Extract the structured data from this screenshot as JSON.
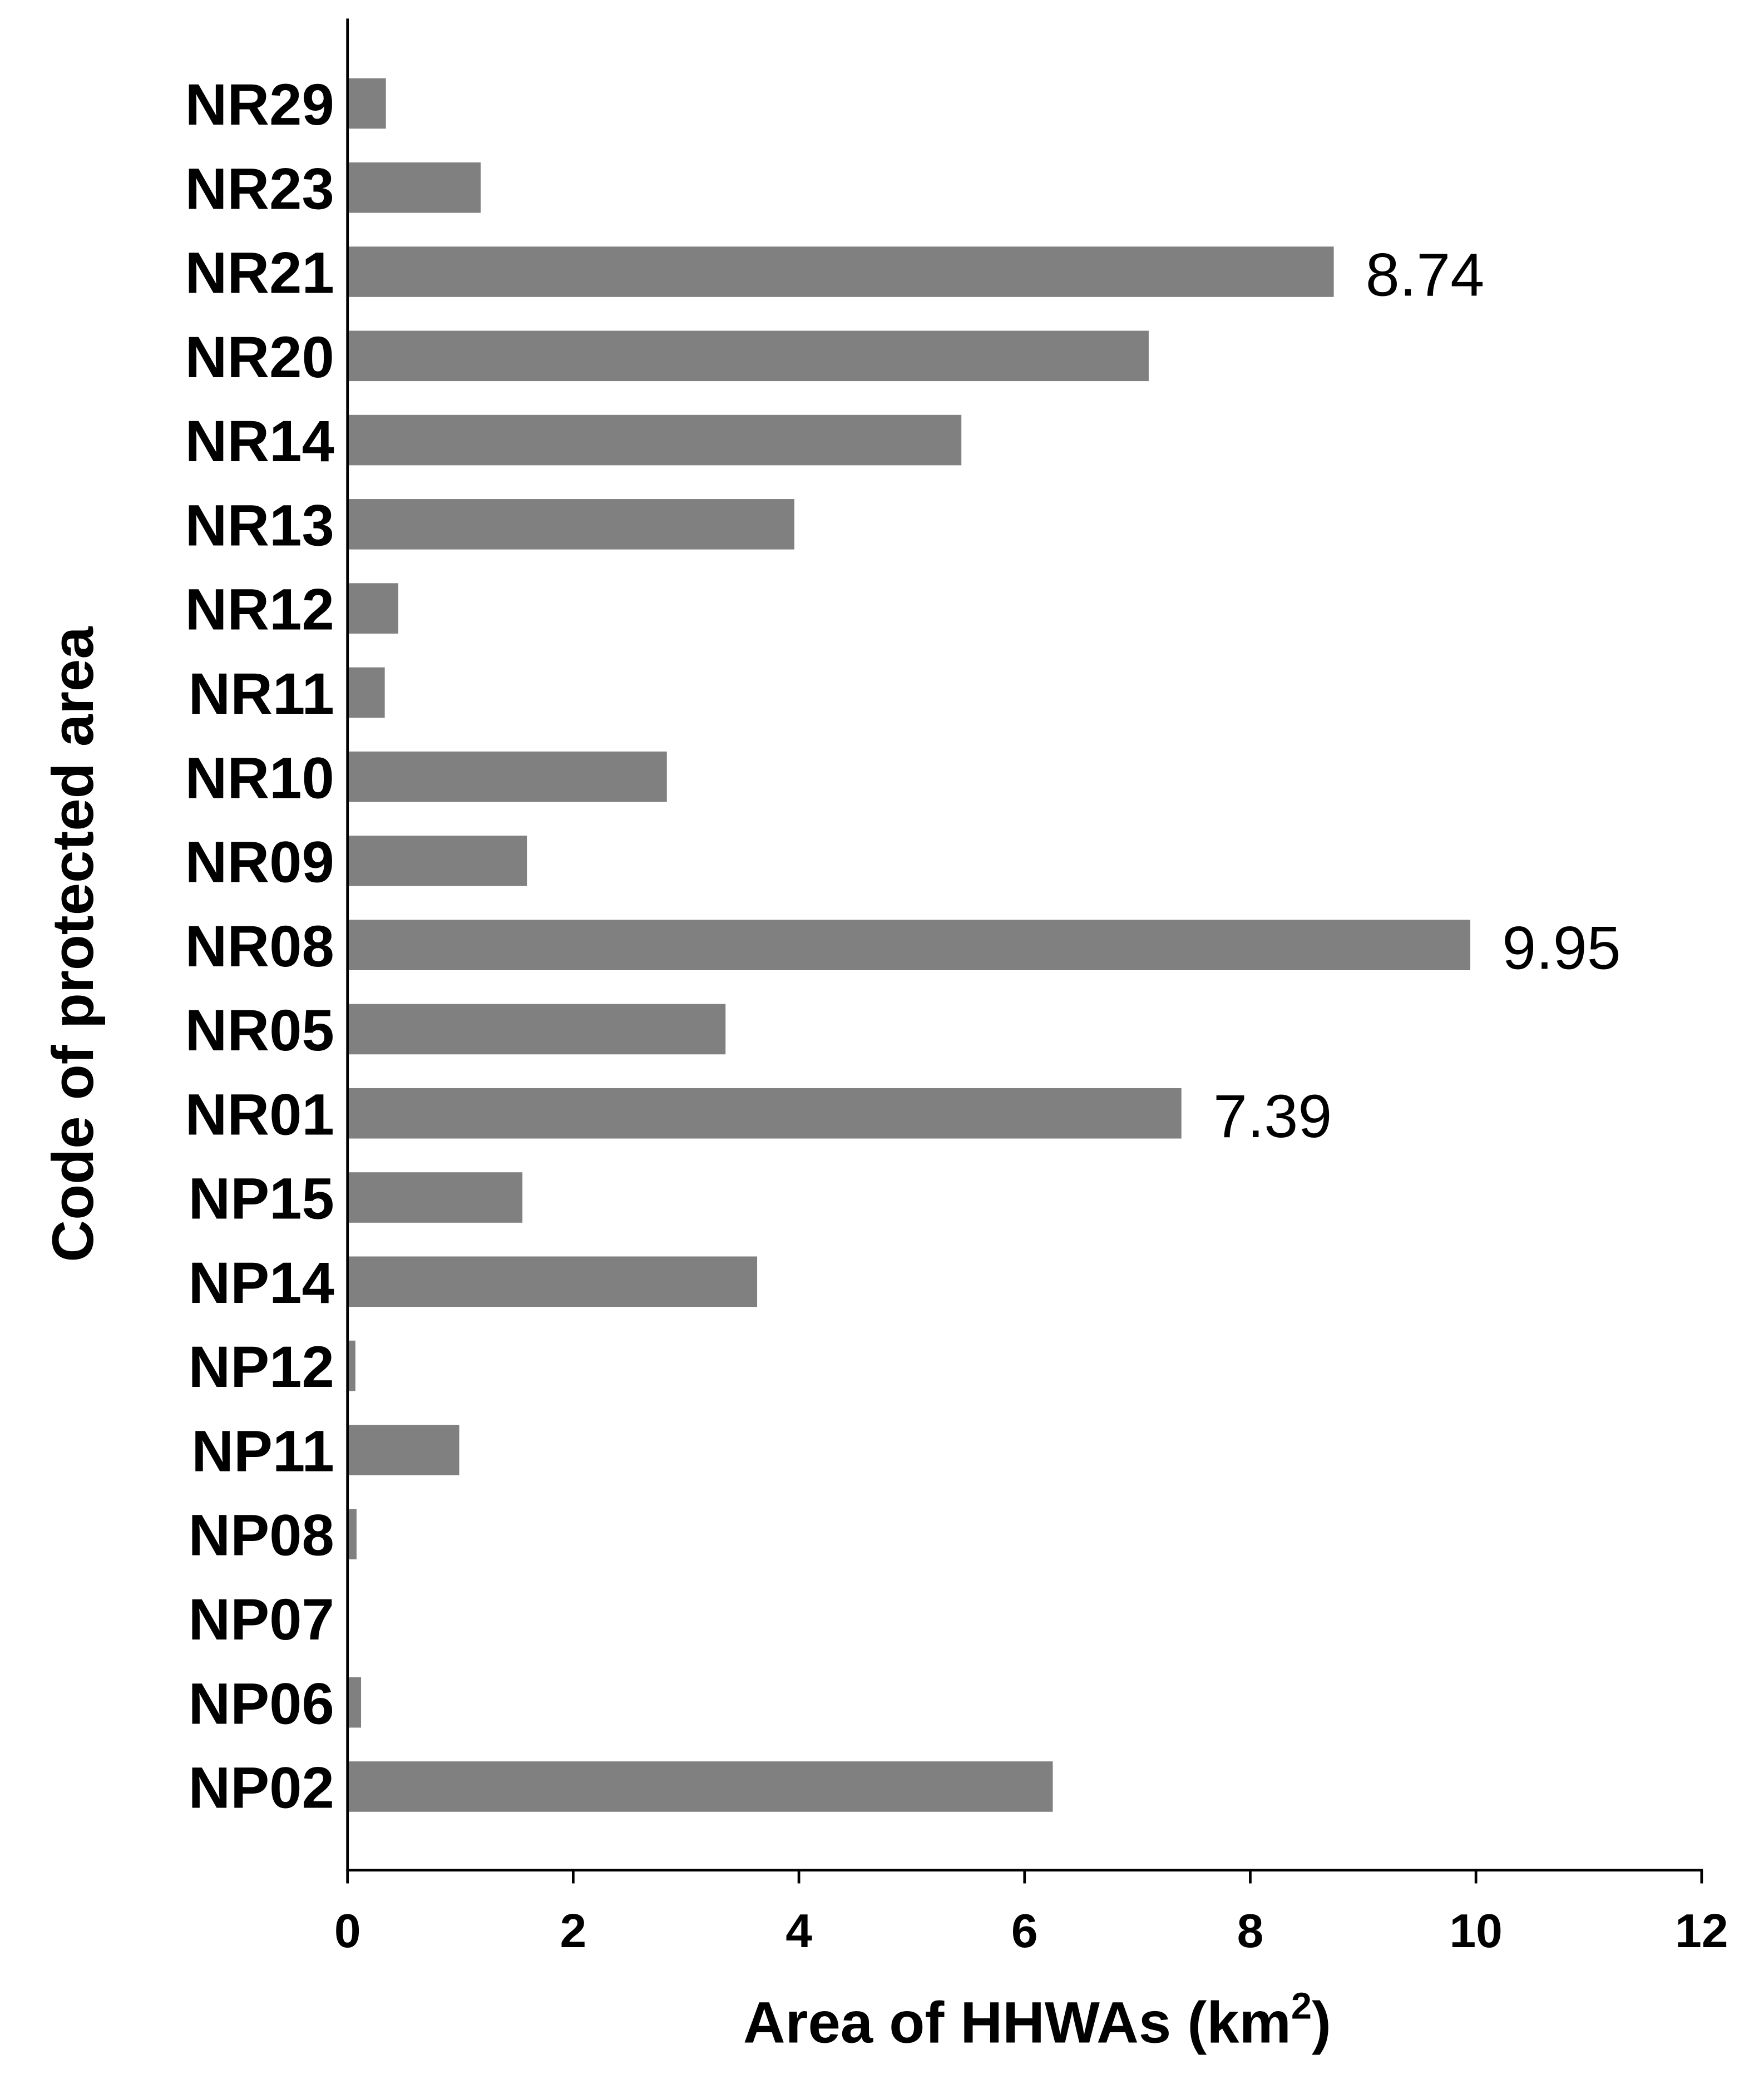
{
  "chart_data": {
    "type": "bar",
    "orientation": "horizontal",
    "categories": [
      "NR29",
      "NR23",
      "NR21",
      "NR20",
      "NR14",
      "NR13",
      "NR12",
      "NR11",
      "NR10",
      "NR09",
      "NR08",
      "NR05",
      "NR01",
      "NP15",
      "NP14",
      "NP12",
      "NP11",
      "NP08",
      "NP07",
      "NP06",
      "NP02"
    ],
    "values": [
      0.34,
      1.18,
      8.74,
      7.1,
      5.44,
      3.96,
      0.45,
      0.33,
      2.83,
      1.59,
      9.95,
      3.35,
      7.39,
      1.55,
      3.63,
      0.07,
      0.99,
      0.08,
      0.01,
      0.12,
      6.25
    ],
    "data_labels": {
      "NR21": "8.74",
      "NR08": "9.95",
      "NR01": "7.39"
    },
    "xlabel": "Area of HHWAs (km",
    "xlabel_sup": "2",
    "xlabel_end": ")",
    "ylabel": "Code of protected area",
    "xlim": [
      0,
      12
    ],
    "xticks": [
      "0",
      "2",
      "4",
      "6",
      "8",
      "10",
      "12"
    ],
    "grid": false,
    "bar_color": "#808080"
  }
}
